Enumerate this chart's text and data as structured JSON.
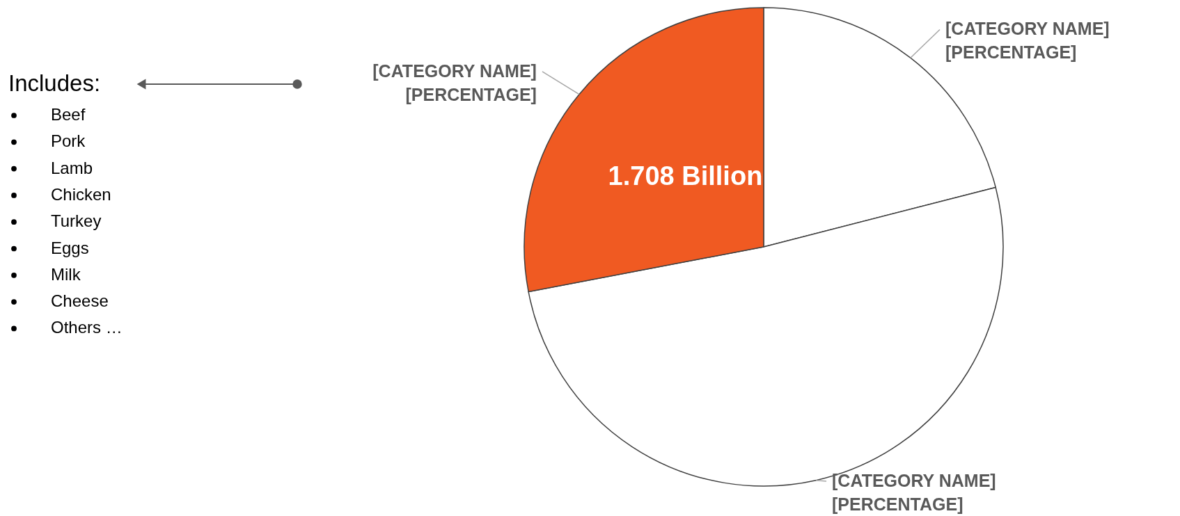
{
  "chart_data": {
    "type": "pie",
    "categories": [
      "[CATEGORY NAME]",
      "[CATEGORY NAME]",
      "[CATEGORY NAME]"
    ],
    "values": [
      21,
      51,
      28
    ],
    "colors": [
      "#ffffff",
      "#ffffff",
      "#f05a22"
    ],
    "value_labels": [
      "[PERCENTAGE]",
      "[PERCENTAGE]",
      "[PERCENTAGE]"
    ],
    "annotations": [
      "1.708 Billion",
      "Includes:",
      "Beef",
      "Pork",
      "Lamb",
      "Chicken",
      "Turkey",
      "Eggs",
      "Milk",
      "Cheese",
      "Others …"
    ]
  }
}
